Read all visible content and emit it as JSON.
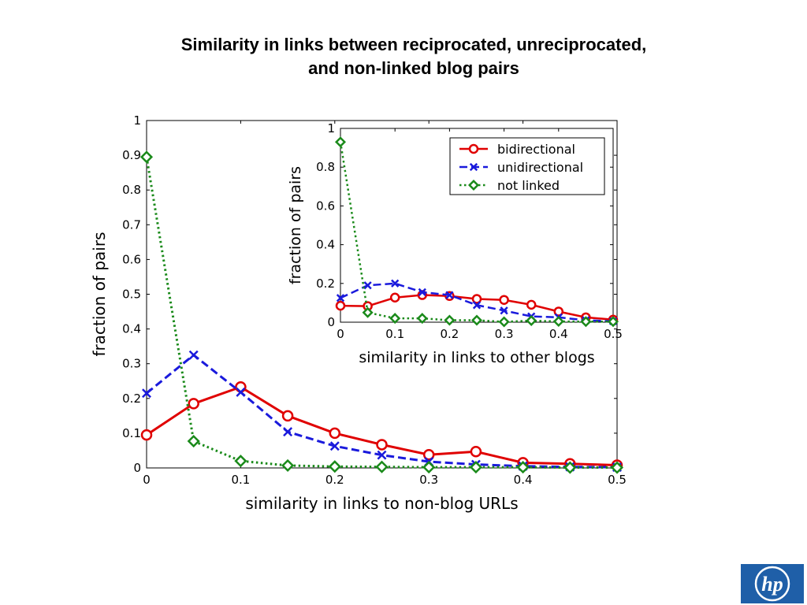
{
  "slide": {
    "title_line1": "Similarity in links between reciprocated, unreciprocated,",
    "title_line2": "and non-linked blog pairs"
  },
  "logo": {
    "text": "hp",
    "color": "#1f5fa8"
  },
  "chart_data": [
    {
      "type": "line",
      "xlabel": "similarity in links to non-blog URLs",
      "ylabel": "fraction of pairs",
      "xlim": [
        0,
        0.5
      ],
      "ylim": [
        0,
        1
      ],
      "xticks": [
        0,
        0.1,
        0.2,
        0.3,
        0.4,
        0.5
      ],
      "xtick_labels": [
        "0",
        "0.1",
        "0.2",
        "0.3",
        "0.4",
        "0.5"
      ],
      "yticks": [
        0,
        0.1,
        0.2,
        0.3,
        0.4,
        0.5,
        0.6,
        0.7,
        0.8,
        0.9,
        1
      ],
      "ytick_labels": [
        "0",
        "0.1",
        "0.2",
        "0.3",
        "0.4",
        "0.5",
        "0.6",
        "0.7",
        "0.8",
        "0.9",
        "1"
      ],
      "x": [
        0,
        0.05,
        0.1,
        0.15,
        0.2,
        0.25,
        0.3,
        0.35,
        0.4,
        0.45,
        0.5
      ],
      "grid": false,
      "series": [
        {
          "name": "bidirectional",
          "color": "#e00000",
          "marker": "circle",
          "dash": "solid",
          "values": [
            0.095,
            0.185,
            0.233,
            0.15,
            0.1,
            0.067,
            0.038,
            0.047,
            0.015,
            0.012,
            0.008
          ]
        },
        {
          "name": "unidirectional",
          "color": "#1a1adc",
          "marker": "x",
          "dash": "dashed",
          "values": [
            0.215,
            0.325,
            0.218,
            0.104,
            0.063,
            0.037,
            0.018,
            0.01,
            0.005,
            0.003,
            0.002
          ]
        },
        {
          "name": "not linked",
          "color": "#1a8a1a",
          "marker": "diamond",
          "dash": "dotted",
          "values": [
            0.895,
            0.077,
            0.02,
            0.007,
            0.004,
            0.003,
            0.002,
            0.002,
            0.002,
            0.001,
            0.001
          ]
        }
      ]
    },
    {
      "type": "line",
      "xlabel": "similarity in links to other blogs",
      "ylabel": "fraction of pairs",
      "xlim": [
        0,
        0.5
      ],
      "ylim": [
        0,
        1
      ],
      "xticks": [
        0,
        0.1,
        0.2,
        0.3,
        0.4,
        0.5
      ],
      "xtick_labels": [
        "0",
        "0.1",
        "0.2",
        "0.3",
        "0.4",
        "0.5"
      ],
      "yticks": [
        0,
        0.2,
        0.4,
        0.6,
        0.8,
        1
      ],
      "ytick_labels": [
        "0",
        "0.2",
        "0.4",
        "0.6",
        "0.8",
        "1"
      ],
      "x": [
        0,
        0.05,
        0.1,
        0.15,
        0.2,
        0.25,
        0.3,
        0.35,
        0.4,
        0.45,
        0.5
      ],
      "grid": false,
      "legend_position": "top-right",
      "series": [
        {
          "name": "bidirectional",
          "color": "#e00000",
          "marker": "circle",
          "dash": "solid",
          "values": [
            0.085,
            0.083,
            0.127,
            0.14,
            0.135,
            0.12,
            0.115,
            0.09,
            0.055,
            0.025,
            0.013
          ]
        },
        {
          "name": "unidirectional",
          "color": "#1a1adc",
          "marker": "x",
          "dash": "dashed",
          "values": [
            0.125,
            0.19,
            0.2,
            0.155,
            0.14,
            0.088,
            0.06,
            0.03,
            0.025,
            0.01,
            0.005
          ]
        },
        {
          "name": "not linked",
          "color": "#1a8a1a",
          "marker": "diamond",
          "dash": "dotted",
          "values": [
            0.93,
            0.05,
            0.02,
            0.02,
            0.01,
            0.01,
            0.002,
            0.008,
            0.004,
            0.003,
            0.003
          ]
        }
      ]
    }
  ]
}
